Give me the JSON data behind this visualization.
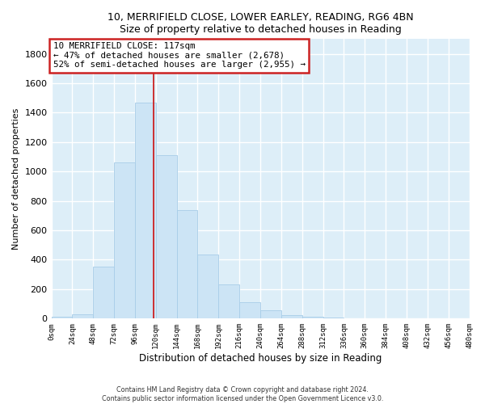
{
  "title": "10, MERRIFIELD CLOSE, LOWER EARLEY, READING, RG6 4BN",
  "subtitle": "Size of property relative to detached houses in Reading",
  "xlabel": "Distribution of detached houses by size in Reading",
  "ylabel": "Number of detached properties",
  "bar_color": "#cce4f5",
  "bar_edge_color": "#a8cde8",
  "background_color": "#ddeef8",
  "grid_color": "white",
  "bin_edges": [
    0,
    24,
    48,
    72,
    96,
    120,
    144,
    168,
    192,
    216,
    240,
    264,
    288,
    312,
    336,
    360,
    384,
    408,
    432,
    456,
    480
  ],
  "counts": [
    15,
    30,
    355,
    1060,
    1470,
    1110,
    740,
    435,
    230,
    110,
    55,
    25,
    15,
    5,
    3,
    2,
    1,
    0,
    0,
    0
  ],
  "property_size": 117,
  "vline_color": "#cc2222",
  "annotation_text": "10 MERRIFIELD CLOSE: 117sqm\n← 47% of detached houses are smaller (2,678)\n52% of semi-detached houses are larger (2,955) →",
  "annotation_box_edge": "#cc2222",
  "annotation_box_face": "white",
  "footer_line1": "Contains HM Land Registry data © Crown copyright and database right 2024.",
  "footer_line2": "Contains public sector information licensed under the Open Government Licence v3.0.",
  "ylim": [
    0,
    1900
  ],
  "yticks": [
    0,
    200,
    400,
    600,
    800,
    1000,
    1200,
    1400,
    1600,
    1800
  ],
  "tick_labels": [
    "0sqm",
    "24sqm",
    "48sqm",
    "72sqm",
    "96sqm",
    "120sqm",
    "144sqm",
    "168sqm",
    "192sqm",
    "216sqm",
    "240sqm",
    "264sqm",
    "288sqm",
    "312sqm",
    "336sqm",
    "360sqm",
    "384sqm",
    "408sqm",
    "432sqm",
    "456sqm",
    "480sqm"
  ]
}
